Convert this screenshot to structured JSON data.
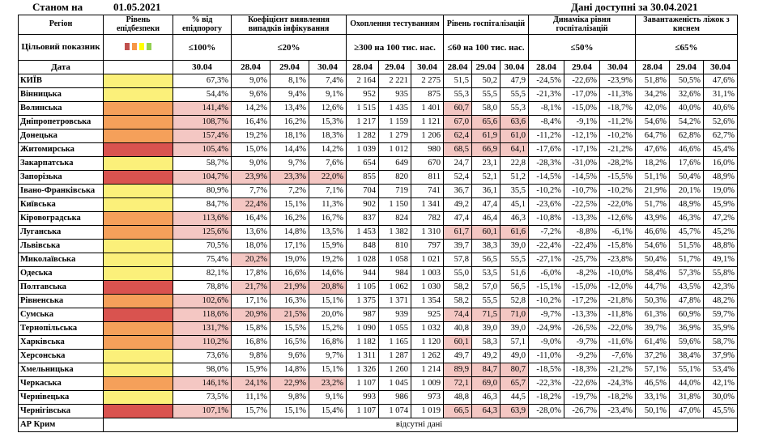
{
  "header": {
    "as_of_label": "Станом на",
    "as_of_date": "01.05.2021",
    "data_available": "Дані доступні за 30.04.2021"
  },
  "columns": {
    "region": "Регіон",
    "level": "Рівень епідбезпеки",
    "pct_threshold": "% від епідпорогу",
    "detection": "Коефіцієнт виявлення випадків інфікування",
    "testing": "Охоплення тестуванням",
    "hosp_level": "Рівень госпіталізацій",
    "hosp_dynamics": "Динаміка рівня госпіталізацій",
    "beds": "Завантаженість ліжок з киснем"
  },
  "target": {
    "label": "Цільовий показник",
    "pct_threshold": "≤100%",
    "detection": "≤20%",
    "testing": "≥300 на 100 тис. нас.",
    "hosp_level": "≤60 на 100 тис. нас.",
    "hosp_dynamics": "≤50%",
    "beds": "≤65%"
  },
  "legend_colors": [
    "#c0504d",
    "#f79646",
    "#ffff00",
    "#92d050"
  ],
  "date_row": {
    "label": "Дата",
    "pct_threshold": "30.04",
    "dates": [
      "28.04",
      "29.04",
      "30.04"
    ]
  },
  "colors": {
    "red": "#d9534f",
    "orange": "#f5a05a",
    "yellow": "#fbf07a",
    "pink": "#f4c7c3"
  },
  "rows": [
    {
      "region": "КИЇВ",
      "level": "yellow",
      "pct": "67,3%",
      "det": [
        "9,0%",
        "8,1%",
        "7,4%"
      ],
      "test": [
        "2 164",
        "2 221",
        "2 275"
      ],
      "hosp": [
        "51,5",
        "50,2",
        "47,9"
      ],
      "dyn": [
        "-24,5%",
        "-22,6%",
        "-23,9%"
      ],
      "beds": [
        "51,8%",
        "50,5%",
        "47,6%"
      ],
      "pink": []
    },
    {
      "region": "Вінницька",
      "level": "yellow",
      "pct": "54,4%",
      "det": [
        "9,6%",
        "9,4%",
        "9,1%"
      ],
      "test": [
        "952",
        "935",
        "875"
      ],
      "hosp": [
        "55,3",
        "55,5",
        "55,5"
      ],
      "dyn": [
        "-21,3%",
        "-17,0%",
        "-11,3%"
      ],
      "beds": [
        "34,2%",
        "32,6%",
        "31,1%"
      ],
      "pink": []
    },
    {
      "region": "Волинська",
      "level": "orange",
      "pct": "141,4%",
      "det": [
        "14,2%",
        "13,4%",
        "12,6%"
      ],
      "test": [
        "1 515",
        "1 435",
        "1 401"
      ],
      "hosp": [
        "60,7",
        "58,0",
        "55,3"
      ],
      "dyn": [
        "-8,1%",
        "-15,0%",
        "-18,7%"
      ],
      "beds": [
        "42,0%",
        "40,0%",
        "40,6%"
      ],
      "pink": [
        "pct",
        "hosp0"
      ]
    },
    {
      "region": "Дніпропетровська",
      "level": "orange",
      "pct": "108,7%",
      "det": [
        "16,4%",
        "16,2%",
        "15,3%"
      ],
      "test": [
        "1 217",
        "1 159",
        "1 121"
      ],
      "hosp": [
        "67,0",
        "65,6",
        "63,6"
      ],
      "dyn": [
        "-8,4%",
        "-9,1%",
        "-11,2%"
      ],
      "beds": [
        "54,6%",
        "54,2%",
        "52,6%"
      ],
      "pink": [
        "pct",
        "hosp0",
        "hosp1",
        "hosp2"
      ]
    },
    {
      "region": "Донецька",
      "level": "orange",
      "pct": "157,4%",
      "det": [
        "19,2%",
        "18,1%",
        "18,3%"
      ],
      "test": [
        "1 282",
        "1 279",
        "1 206"
      ],
      "hosp": [
        "62,4",
        "61,9",
        "61,0"
      ],
      "dyn": [
        "-11,2%",
        "-12,1%",
        "-10,2%"
      ],
      "beds": [
        "64,7%",
        "62,8%",
        "62,7%"
      ],
      "pink": [
        "pct",
        "hosp0",
        "hosp1",
        "hosp2"
      ]
    },
    {
      "region": "Житомирська",
      "level": "red",
      "pct": "105,4%",
      "det": [
        "15,0%",
        "14,4%",
        "14,2%"
      ],
      "test": [
        "1 039",
        "1 012",
        "980"
      ],
      "hosp": [
        "68,5",
        "66,9",
        "64,1"
      ],
      "dyn": [
        "-17,6%",
        "-17,1%",
        "-21,2%"
      ],
      "beds": [
        "47,6%",
        "46,6%",
        "45,4%"
      ],
      "pink": [
        "pct",
        "hosp0",
        "hosp1",
        "hosp2"
      ]
    },
    {
      "region": "Закарпатська",
      "level": "yellow",
      "pct": "58,7%",
      "det": [
        "9,0%",
        "9,7%",
        "7,6%"
      ],
      "test": [
        "654",
        "649",
        "670"
      ],
      "hosp": [
        "24,7",
        "23,1",
        "22,8"
      ],
      "dyn": [
        "-28,3%",
        "-31,0%",
        "-28,2%"
      ],
      "beds": [
        "18,2%",
        "17,6%",
        "16,0%"
      ],
      "pink": []
    },
    {
      "region": "Запорізька",
      "level": "red",
      "pct": "104,7%",
      "det": [
        "23,9%",
        "23,3%",
        "22,0%"
      ],
      "test": [
        "855",
        "820",
        "811"
      ],
      "hosp": [
        "52,4",
        "52,1",
        "51,2"
      ],
      "dyn": [
        "-14,5%",
        "-14,5%",
        "-15,5%"
      ],
      "beds": [
        "51,1%",
        "50,4%",
        "48,9%"
      ],
      "pink": [
        "pct",
        "det0",
        "det1",
        "det2"
      ]
    },
    {
      "region": "Івано-Франківська",
      "level": "yellow",
      "pct": "80,9%",
      "det": [
        "7,7%",
        "7,2%",
        "7,1%"
      ],
      "test": [
        "704",
        "719",
        "741"
      ],
      "hosp": [
        "36,7",
        "36,1",
        "35,5"
      ],
      "dyn": [
        "-10,2%",
        "-10,7%",
        "-10,2%"
      ],
      "beds": [
        "21,9%",
        "20,1%",
        "19,0%"
      ],
      "pink": []
    },
    {
      "region": "Київська",
      "level": "yellow",
      "pct": "84,7%",
      "det": [
        "22,4%",
        "15,1%",
        "11,3%"
      ],
      "test": [
        "902",
        "1 150",
        "1 341"
      ],
      "hosp": [
        "49,2",
        "47,4",
        "45,1"
      ],
      "dyn": [
        "-23,6%",
        "-22,5%",
        "-22,0%"
      ],
      "beds": [
        "51,7%",
        "48,9%",
        "45,9%"
      ],
      "pink": [
        "det0"
      ]
    },
    {
      "region": "Кіровоградська",
      "level": "orange",
      "pct": "113,6%",
      "det": [
        "16,4%",
        "16,2%",
        "16,7%"
      ],
      "test": [
        "837",
        "824",
        "782"
      ],
      "hosp": [
        "47,4",
        "46,4",
        "46,3"
      ],
      "dyn": [
        "-10,8%",
        "-13,3%",
        "-12,6%"
      ],
      "beds": [
        "43,9%",
        "46,3%",
        "47,2%"
      ],
      "pink": [
        "pct"
      ]
    },
    {
      "region": "Луганська",
      "level": "orange",
      "pct": "125,6%",
      "det": [
        "13,6%",
        "14,8%",
        "13,5%"
      ],
      "test": [
        "1 453",
        "1 382",
        "1 310"
      ],
      "hosp": [
        "61,7",
        "60,1",
        "61,6"
      ],
      "dyn": [
        "-7,2%",
        "-8,8%",
        "-6,1%"
      ],
      "beds": [
        "46,6%",
        "45,7%",
        "45,2%"
      ],
      "pink": [
        "pct",
        "hosp0",
        "hosp1",
        "hosp2"
      ]
    },
    {
      "region": "Львівська",
      "level": "yellow",
      "pct": "70,5%",
      "det": [
        "18,0%",
        "17,1%",
        "15,9%"
      ],
      "test": [
        "848",
        "810",
        "797"
      ],
      "hosp": [
        "39,7",
        "38,3",
        "39,0"
      ],
      "dyn": [
        "-22,4%",
        "-22,4%",
        "-15,8%"
      ],
      "beds": [
        "54,6%",
        "51,5%",
        "48,8%"
      ],
      "pink": []
    },
    {
      "region": "Миколаївська",
      "level": "yellow",
      "pct": "75,4%",
      "det": [
        "20,2%",
        "19,0%",
        "19,2%"
      ],
      "test": [
        "1 028",
        "1 058",
        "1 021"
      ],
      "hosp": [
        "57,8",
        "56,5",
        "55,5"
      ],
      "dyn": [
        "-27,1%",
        "-25,7%",
        "-23,8%"
      ],
      "beds": [
        "50,4%",
        "51,7%",
        "49,1%"
      ],
      "pink": [
        "det0"
      ]
    },
    {
      "region": "Одеська",
      "level": "yellow",
      "pct": "82,1%",
      "det": [
        "17,8%",
        "16,6%",
        "14,6%"
      ],
      "test": [
        "944",
        "984",
        "1 003"
      ],
      "hosp": [
        "55,0",
        "53,5",
        "51,6"
      ],
      "dyn": [
        "-6,0%",
        "-8,2%",
        "-10,0%"
      ],
      "beds": [
        "58,4%",
        "57,3%",
        "55,8%"
      ],
      "pink": []
    },
    {
      "region": "Полтавська",
      "level": "red",
      "pct": "78,8%",
      "det": [
        "21,7%",
        "21,9%",
        "20,8%"
      ],
      "test": [
        "1 105",
        "1 062",
        "1 030"
      ],
      "hosp": [
        "58,2",
        "57,0",
        "56,5"
      ],
      "dyn": [
        "-15,1%",
        "-15,0%",
        "-12,0%"
      ],
      "beds": [
        "44,7%",
        "43,5%",
        "42,3%"
      ],
      "pink": [
        "det0",
        "det1",
        "det2"
      ]
    },
    {
      "region": "Рівненська",
      "level": "orange",
      "pct": "102,6%",
      "det": [
        "17,1%",
        "16,3%",
        "15,1%"
      ],
      "test": [
        "1 375",
        "1 371",
        "1 354"
      ],
      "hosp": [
        "58,2",
        "55,5",
        "52,8"
      ],
      "dyn": [
        "-10,2%",
        "-17,2%",
        "-21,8%"
      ],
      "beds": [
        "50,3%",
        "47,8%",
        "48,2%"
      ],
      "pink": [
        "pct"
      ]
    },
    {
      "region": "Сумська",
      "level": "red",
      "pct": "118,6%",
      "det": [
        "20,9%",
        "21,5%",
        "20,0%"
      ],
      "test": [
        "987",
        "939",
        "925"
      ],
      "hosp": [
        "74,4",
        "71,5",
        "71,0"
      ],
      "dyn": [
        "-9,7%",
        "-13,3%",
        "-11,8%"
      ],
      "beds": [
        "61,3%",
        "60,9%",
        "59,7%"
      ],
      "pink": [
        "pct",
        "det0",
        "det1",
        "hosp0",
        "hosp1",
        "hosp2"
      ]
    },
    {
      "region": "Тернопільська",
      "level": "orange",
      "pct": "131,7%",
      "det": [
        "15,8%",
        "15,5%",
        "15,2%"
      ],
      "test": [
        "1 090",
        "1 055",
        "1 032"
      ],
      "hosp": [
        "40,8",
        "39,0",
        "39,0"
      ],
      "dyn": [
        "-24,9%",
        "-26,5%",
        "-22,0%"
      ],
      "beds": [
        "39,7%",
        "36,9%",
        "35,9%"
      ],
      "pink": [
        "pct"
      ]
    },
    {
      "region": "Харківська",
      "level": "orange",
      "pct": "110,2%",
      "det": [
        "16,8%",
        "16,5%",
        "16,8%"
      ],
      "test": [
        "1 182",
        "1 165",
        "1 120"
      ],
      "hosp": [
        "60,1",
        "58,3",
        "57,1"
      ],
      "dyn": [
        "-9,0%",
        "-9,7%",
        "-11,6%"
      ],
      "beds": [
        "61,4%",
        "59,6%",
        "58,7%"
      ],
      "pink": [
        "pct",
        "hosp0"
      ]
    },
    {
      "region": "Херсонська",
      "level": "yellow",
      "pct": "73,6%",
      "det": [
        "9,8%",
        "9,6%",
        "9,7%"
      ],
      "test": [
        "1 311",
        "1 287",
        "1 262"
      ],
      "hosp": [
        "49,7",
        "49,2",
        "49,0"
      ],
      "dyn": [
        "-11,0%",
        "-9,2%",
        "-7,6%"
      ],
      "beds": [
        "37,2%",
        "38,4%",
        "37,9%"
      ],
      "pink": []
    },
    {
      "region": "Хмельницька",
      "level": "yellow",
      "pct": "98,0%",
      "det": [
        "15,9%",
        "14,8%",
        "15,1%"
      ],
      "test": [
        "1 326",
        "1 260",
        "1 214"
      ],
      "hosp": [
        "89,9",
        "84,7",
        "80,7"
      ],
      "dyn": [
        "-18,5%",
        "-18,3%",
        "-21,2%"
      ],
      "beds": [
        "57,1%",
        "55,1%",
        "53,4%"
      ],
      "pink": [
        "hosp0",
        "hosp1",
        "hosp2"
      ]
    },
    {
      "region": "Черкаська",
      "level": "orange",
      "pct": "146,1%",
      "det": [
        "24,1%",
        "22,9%",
        "23,2%"
      ],
      "test": [
        "1 107",
        "1 045",
        "1 009"
      ],
      "hosp": [
        "72,1",
        "69,0",
        "65,7"
      ],
      "dyn": [
        "-22,3%",
        "-22,6%",
        "-24,3%"
      ],
      "beds": [
        "46,5%",
        "44,0%",
        "42,1%"
      ],
      "pink": [
        "pct",
        "det0",
        "det1",
        "det2",
        "hosp0",
        "hosp1",
        "hosp2"
      ]
    },
    {
      "region": "Чернівецька",
      "level": "yellow",
      "pct": "73,5%",
      "det": [
        "11,1%",
        "9,8%",
        "9,1%"
      ],
      "test": [
        "993",
        "986",
        "973"
      ],
      "hosp": [
        "48,8",
        "46,3",
        "44,5"
      ],
      "dyn": [
        "-18,2%",
        "-19,7%",
        "-18,2%"
      ],
      "beds": [
        "33,1%",
        "31,8%",
        "30,0%"
      ],
      "pink": []
    },
    {
      "region": "Чернігівська",
      "level": "red",
      "pct": "107,1%",
      "det": [
        "15,7%",
        "15,1%",
        "15,4%"
      ],
      "test": [
        "1 107",
        "1 074",
        "1 019"
      ],
      "hosp": [
        "66,5",
        "64,3",
        "63,9"
      ],
      "dyn": [
        "-28,0%",
        "-26,7%",
        "-23,4%"
      ],
      "beds": [
        "50,1%",
        "47,0%",
        "45,5%"
      ],
      "pink": [
        "pct",
        "hosp0",
        "hosp1",
        "hosp2"
      ]
    }
  ],
  "crimea": {
    "region": "АР Крим",
    "note": "відсутні дані"
  }
}
